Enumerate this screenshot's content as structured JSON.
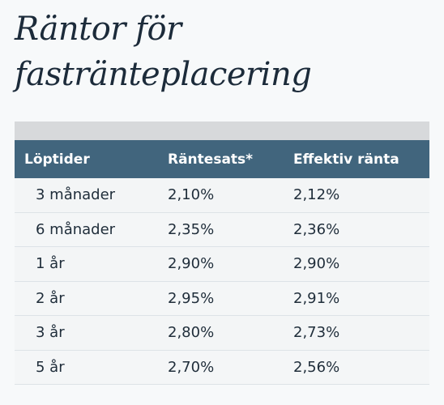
{
  "header": {
    "title": "Räntor för fasträntеplacering"
  },
  "table": {
    "columns": [
      "Löptider",
      "Räntesats*",
      "Effektiv ränta"
    ],
    "rows": [
      [
        "3 månader",
        "2,10%",
        "2,12%"
      ],
      [
        "6 månader",
        "2,35%",
        "2,36%"
      ],
      [
        "1 år",
        "2,90%",
        "2,90%"
      ],
      [
        "2 år",
        "2,95%",
        "2,91%"
      ],
      [
        "3 år",
        "2,80%",
        "2,73%"
      ],
      [
        "5 år",
        "2,70%",
        "2,56%"
      ]
    ]
  }
}
